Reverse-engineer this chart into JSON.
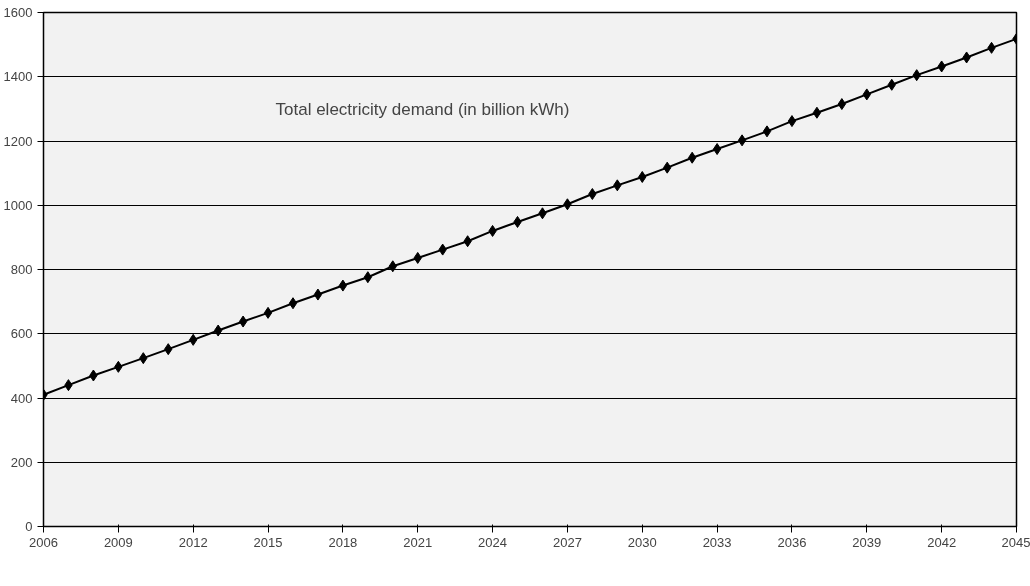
{
  "chart_data": {
    "type": "line",
    "title": "Total electricity demand (in billion kWh)",
    "x": [
      2006,
      2007,
      2008,
      2009,
      2010,
      2011,
      2012,
      2013,
      2014,
      2015,
      2016,
      2017,
      2018,
      2019,
      2020,
      2021,
      2022,
      2023,
      2024,
      2025,
      2026,
      2027,
      2028,
      2029,
      2030,
      2031,
      2032,
      2033,
      2034,
      2035,
      2036,
      2037,
      2038,
      2039,
      2040,
      2041,
      2042,
      2043,
      2044,
      2045
    ],
    "series": [
      {
        "color": "#000000",
        "values": [
          410,
          440,
          470,
          497,
          524,
          552,
          581,
          610,
          638,
          665,
          695,
          722,
          750,
          776,
          810,
          836,
          862,
          888,
          920,
          948,
          975,
          1003,
          1035,
          1062,
          1088,
          1117,
          1148,
          1175,
          1202,
          1230,
          1262,
          1288,
          1315,
          1345,
          1375,
          1405,
          1432,
          1460,
          1490,
          1518
        ]
      }
    ],
    "xlim": [
      2006,
      2045
    ],
    "xticks": [
      2006,
      2009,
      2012,
      2015,
      2018,
      2021,
      2024,
      2027,
      2030,
      2033,
      2036,
      2039,
      2042,
      2045
    ],
    "ylim": [
      0,
      1600
    ],
    "yticks": [
      0,
      200,
      400,
      600,
      800,
      1000,
      1200,
      1400,
      1600
    ],
    "grid": "y",
    "marker": "diamond",
    "line_style": "solid"
  }
}
